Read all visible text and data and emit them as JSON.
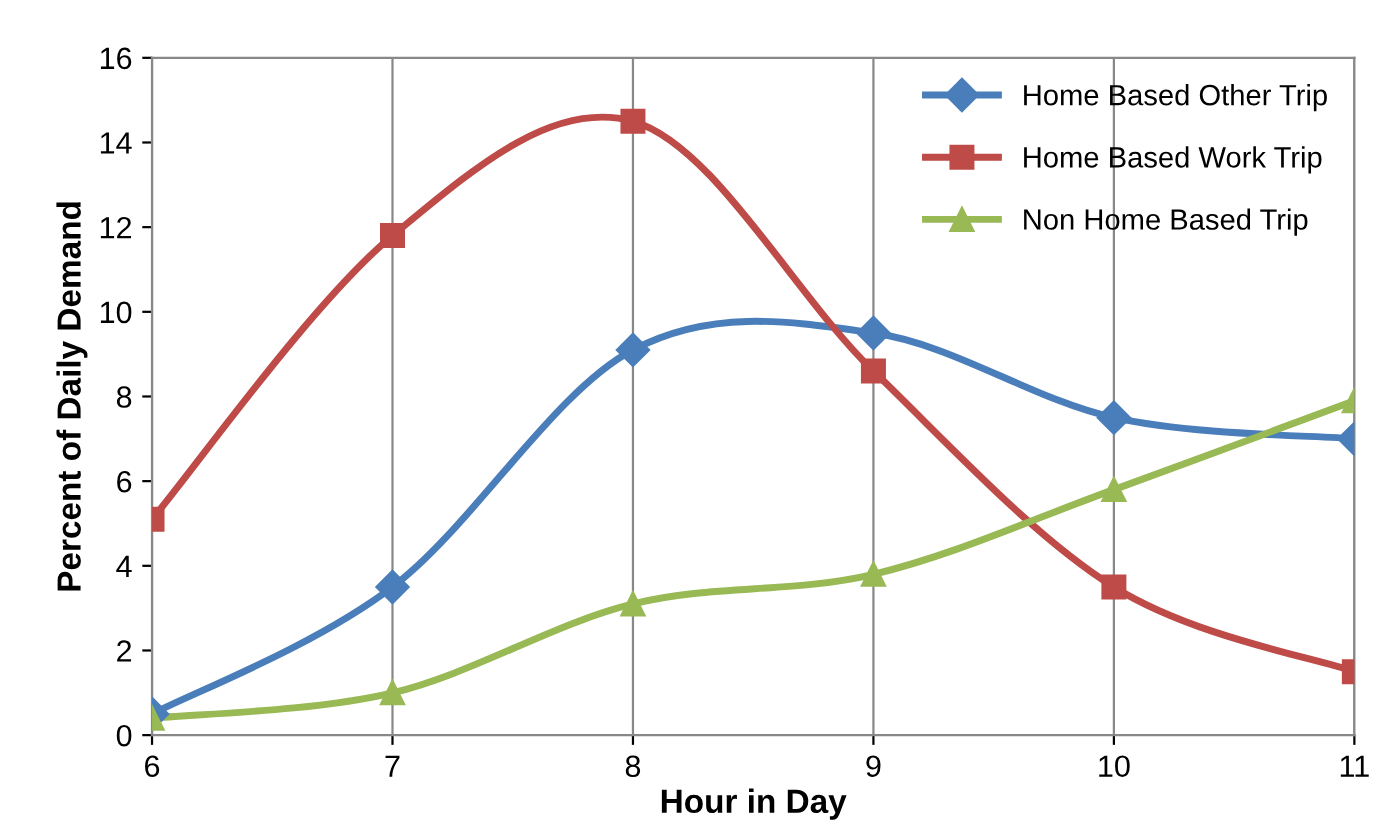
{
  "chart_data": {
    "type": "line",
    "xlabel": "Hour in Day",
    "ylabel": "Percent of Daily Demand",
    "x": [
      6,
      7,
      8,
      9,
      10,
      11
    ],
    "series": [
      {
        "name": "Home Based Other Trip",
        "color": "#4a7ebb",
        "marker": "diamond",
        "values": [
          0.5,
          3.5,
          9.1,
          9.5,
          7.5,
          7.0
        ]
      },
      {
        "name": "Home Based Work Trip",
        "color": "#be4b48",
        "marker": "square",
        "values": [
          5.1,
          11.8,
          14.5,
          8.6,
          3.5,
          1.5
        ]
      },
      {
        "name": "Non Home Based Trip",
        "color": "#98b954",
        "marker": "triangle",
        "values": [
          0.4,
          1.0,
          3.1,
          3.8,
          5.8,
          7.9
        ]
      }
    ],
    "xlim": [
      6,
      11
    ],
    "xticks": [
      6,
      7,
      8,
      9,
      10,
      11
    ],
    "ylim": [
      0,
      16
    ],
    "yticks": [
      0,
      2,
      4,
      6,
      8,
      10,
      12,
      14,
      16
    ],
    "grid": "x",
    "legend": "top right",
    "line_style": "solid"
  }
}
